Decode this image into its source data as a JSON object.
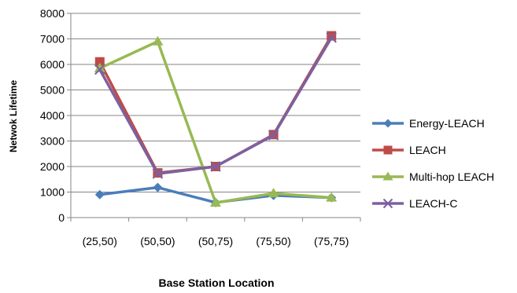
{
  "chart_data": {
    "type": "line",
    "title": "",
    "xlabel": "Base Station Location",
    "ylabel": "Netwok Lifetime",
    "categories": [
      "(25,50)",
      "(50,50)",
      "(50,75)",
      "(75,50)",
      "(75,75)"
    ],
    "ylim": [
      0,
      8000
    ],
    "yticks": [
      "0",
      "1000",
      "2000",
      "3000",
      "4000",
      "5000",
      "6000",
      "7000",
      "8000"
    ],
    "grid": true,
    "legend_position": "right",
    "series": [
      {
        "name": "Energy-LEACH",
        "color": "#4A7EBB",
        "marker": "diamond",
        "values": [
          900,
          1180,
          590,
          870,
          780
        ]
      },
      {
        "name": "LEACH",
        "color": "#BE4B48",
        "marker": "square",
        "values": [
          6100,
          1750,
          2000,
          3250,
          7120
        ]
      },
      {
        "name": "Multi-hop LEACH",
        "color": "#98B954",
        "marker": "triangle",
        "values": [
          5850,
          6900,
          580,
          950,
          780
        ]
      },
      {
        "name": "LEACH-C",
        "color": "#7D60A0",
        "marker": "x",
        "values": [
          5800,
          1720,
          2000,
          3230,
          7050
        ]
      }
    ]
  }
}
